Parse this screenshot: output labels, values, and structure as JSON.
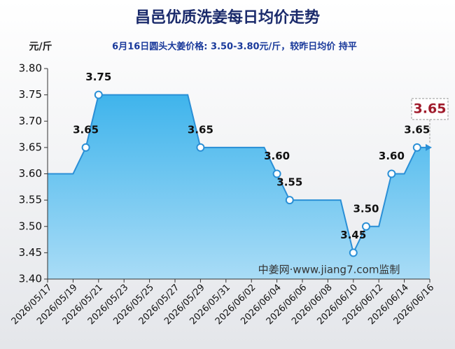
{
  "chart_data": {
    "type": "line",
    "title": "昌邑优质洗姜每日均价走势",
    "y_label": "元/斤",
    "subtitle": "6月16日圆头大姜价格: 3.50-3.80元/斤，较昨日均价 持平",
    "watermark": "中姜网·www.jiang7.com监制",
    "categories": [
      "2026/05/17",
      null,
      "2026/05/19",
      null,
      "2026/05/21",
      null,
      "2026/05/23",
      null,
      "2026/05/25",
      null,
      "2026/05/27",
      null,
      "2026/05/29",
      null,
      "2026/05/31",
      null,
      "2026/06/02",
      null,
      "2026/06/04",
      null,
      "2026/06/06",
      null,
      "2026/06/08",
      null,
      "2026/06/10",
      null,
      "2026/06/12",
      null,
      "2026/06/14",
      null,
      "2026/06/16"
    ],
    "series": [
      {
        "name": "均价",
        "color": "#2a8fd6",
        "values": [
          3.6,
          3.6,
          3.6,
          3.65,
          3.75,
          3.75,
          3.75,
          3.75,
          3.75,
          3.75,
          3.75,
          3.75,
          3.65,
          3.65,
          3.65,
          3.65,
          3.65,
          3.65,
          3.6,
          3.55,
          3.55,
          3.55,
          3.55,
          3.55,
          3.45,
          3.5,
          3.5,
          3.6,
          3.6,
          3.65,
          3.65
        ],
        "value_labels": [
          null,
          null,
          null,
          "3.65",
          "3.75",
          null,
          null,
          null,
          null,
          null,
          null,
          null,
          "3.65",
          null,
          null,
          null,
          null,
          null,
          "3.60",
          "3.55",
          null,
          null,
          null,
          null,
          "3.45",
          "3.50",
          null,
          "3.60",
          null,
          "3.65",
          "3.65"
        ]
      }
    ],
    "ylim": [
      3.4,
      3.8
    ],
    "yticks": [
      {
        "value": 3.4,
        "label": "3.40"
      },
      {
        "value": 3.45,
        "label": "3.45"
      },
      {
        "value": 3.5,
        "label": "3.50"
      },
      {
        "value": 3.55,
        "label": "3.55"
      },
      {
        "value": 3.6,
        "label": "3.60"
      },
      {
        "value": 3.65,
        "label": "3.65"
      },
      {
        "value": 3.7,
        "label": "3.70"
      },
      {
        "value": 3.75,
        "label": "3.75"
      },
      {
        "value": 3.8,
        "label": "3.80"
      }
    ],
    "grid": false
  }
}
